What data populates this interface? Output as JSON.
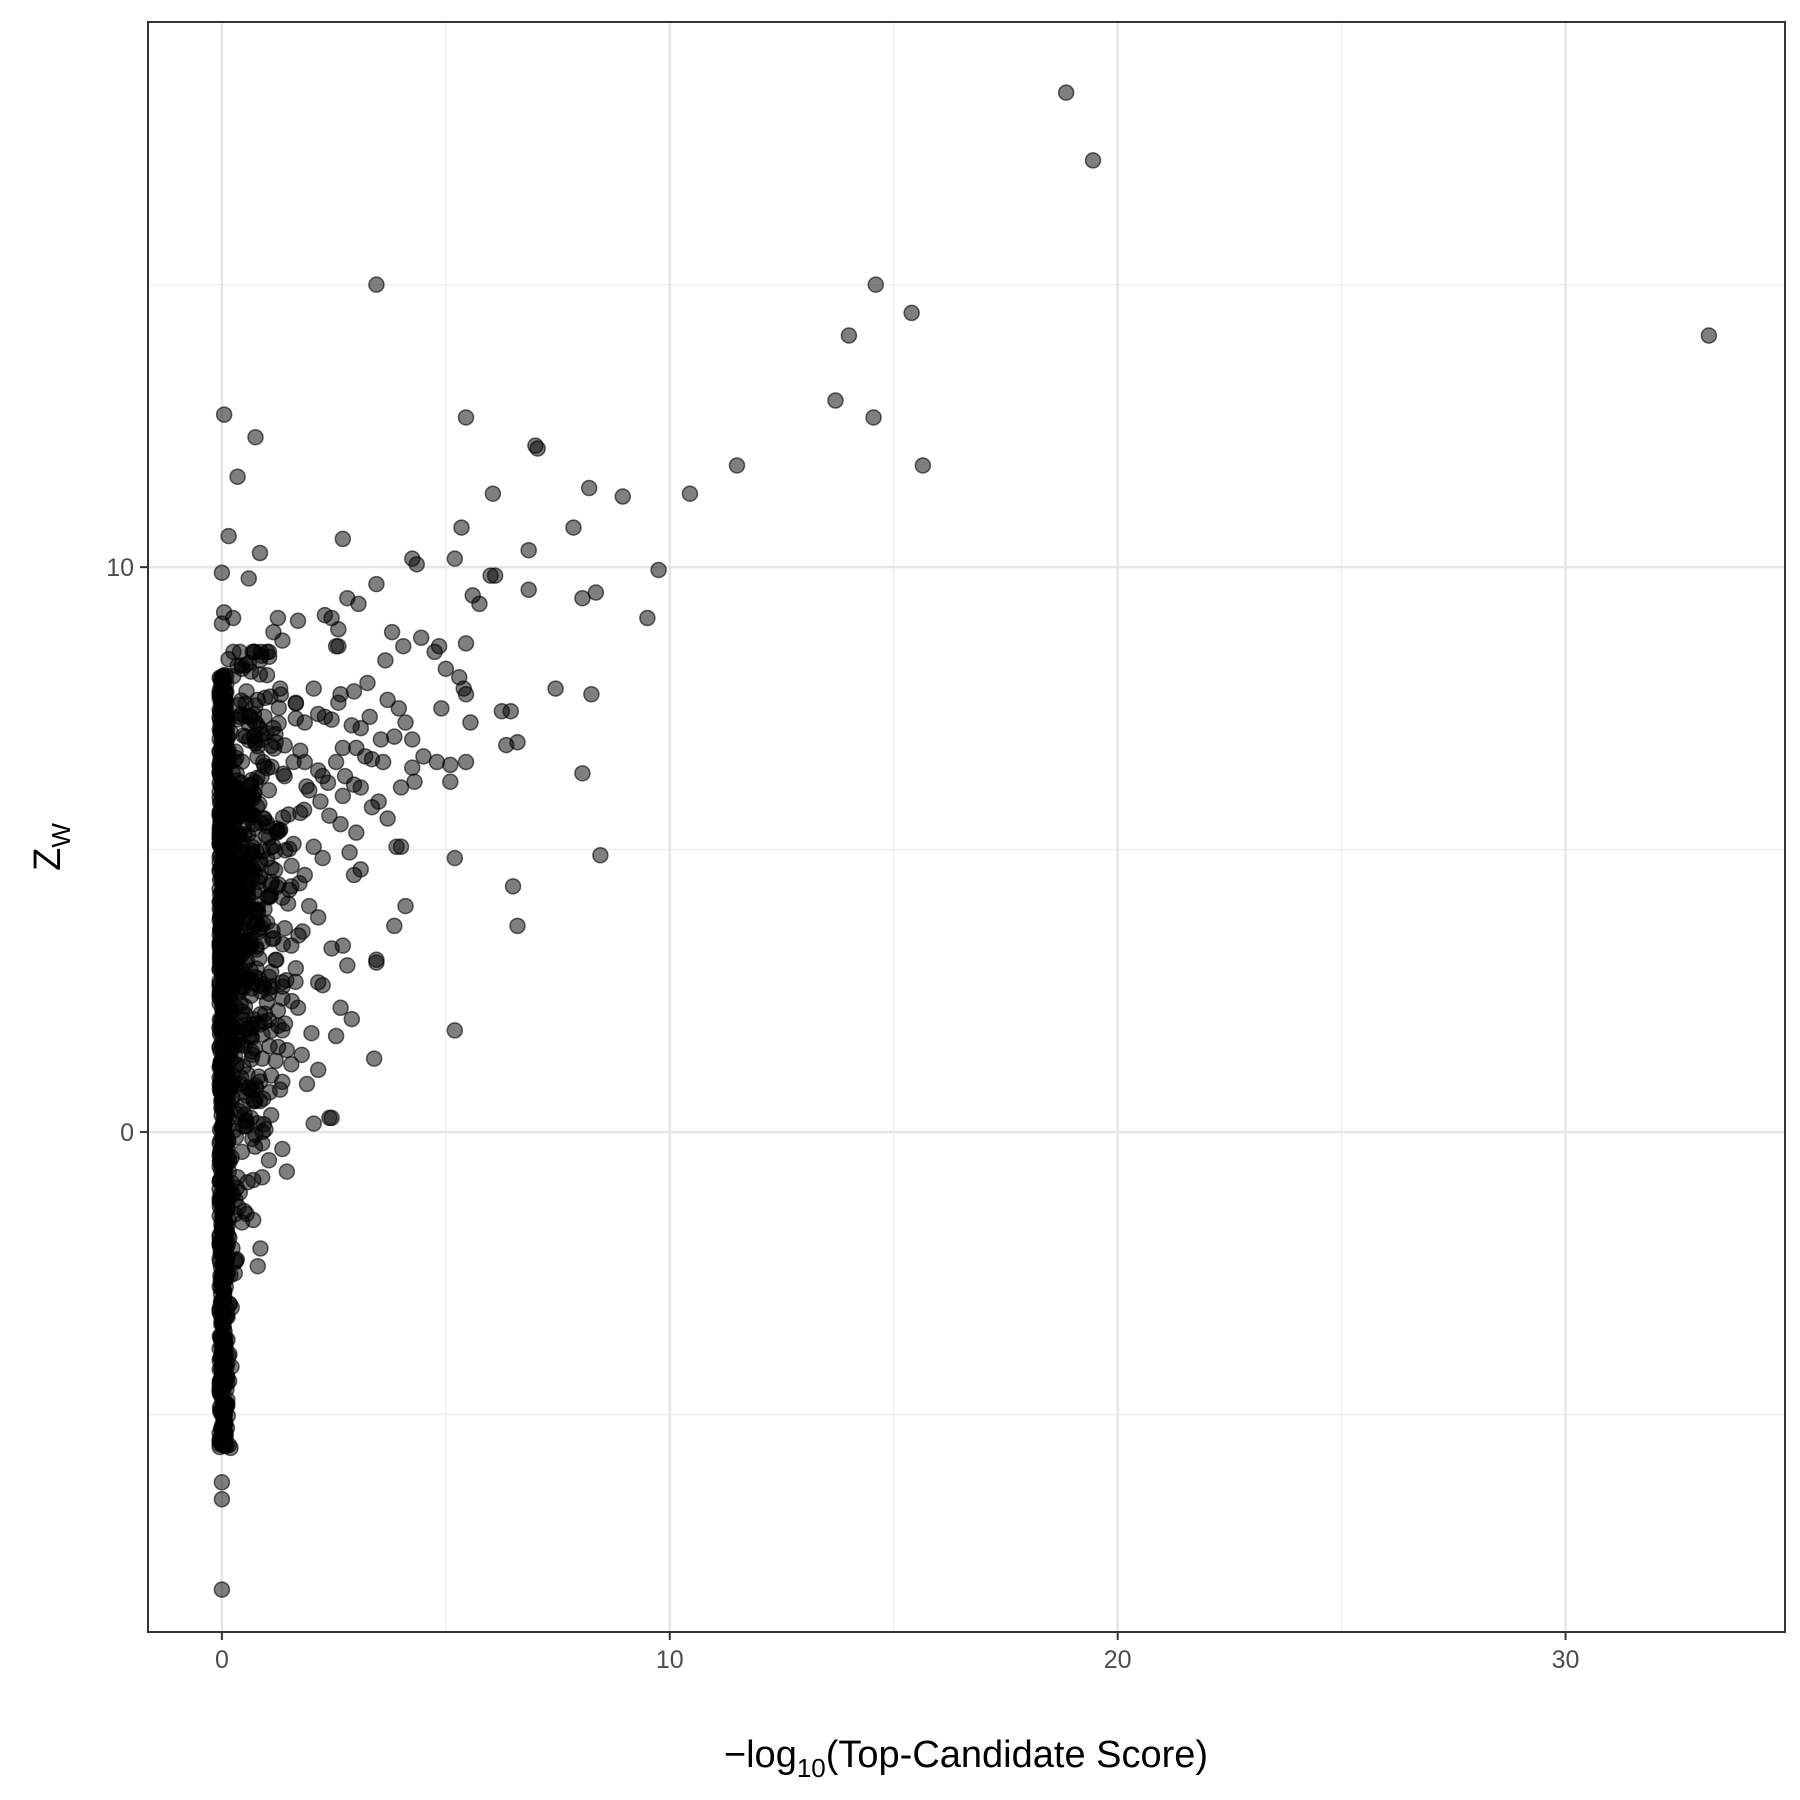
{
  "chart_data": {
    "type": "scatter",
    "xlabel": {
      "prefix": "−log",
      "subscript": "10",
      "suffix": "(Top-Candidate Score)"
    },
    "ylabel": {
      "main": "Z",
      "subscript": "W"
    },
    "xlim": [
      -1.65,
      34.9
    ],
    "ylim": [
      -8.85,
      19.65
    ],
    "x_ticks": [
      {
        "value": 0,
        "label": "0"
      },
      {
        "value": 10,
        "label": "10"
      },
      {
        "value": 20,
        "label": "20"
      },
      {
        "value": 30,
        "label": "30"
      }
    ],
    "y_ticks": [
      {
        "value": 0,
        "label": "0"
      },
      {
        "value": 10,
        "label": "10"
      }
    ],
    "x_minor": [
      5,
      15,
      25
    ],
    "y_minor": [
      -5,
      5,
      15
    ],
    "grid": true,
    "legend": "none",
    "point_color": "#000000",
    "point_opacity": 0.5,
    "points": [
      [
        18.85,
        18.4
      ],
      [
        19.45,
        17.2
      ],
      [
        14.6,
        15.0
      ],
      [
        15.4,
        14.5
      ],
      [
        14.0,
        14.1
      ],
      [
        33.2,
        14.1
      ],
      [
        13.7,
        12.95
      ],
      [
        14.55,
        12.65
      ],
      [
        15.65,
        11.8
      ],
      [
        3.45,
        15.0
      ],
      [
        0.05,
        12.7
      ],
      [
        0.75,
        12.3
      ],
      [
        0.35,
        11.6
      ],
      [
        5.45,
        12.65
      ],
      [
        7.0,
        12.15
      ],
      [
        7.05,
        12.1
      ],
      [
        11.5,
        11.8
      ],
      [
        10.45,
        11.3
      ],
      [
        8.95,
        11.25
      ],
      [
        8.2,
        11.4
      ],
      [
        6.05,
        11.3
      ],
      [
        7.85,
        10.7
      ],
      [
        6.85,
        10.3
      ],
      [
        5.35,
        10.7
      ],
      [
        0.15,
        10.55
      ],
      [
        0.85,
        10.25
      ],
      [
        2.7,
        10.5
      ],
      [
        4.25,
        10.15
      ],
      [
        4.35,
        10.05
      ],
      [
        5.2,
        10.15
      ],
      [
        6.0,
        9.85
      ],
      [
        6.1,
        9.85
      ],
      [
        9.75,
        9.95
      ],
      [
        0.0,
        9.9
      ],
      [
        0.6,
        9.8
      ],
      [
        3.45,
        9.7
      ],
      [
        6.85,
        9.6
      ],
      [
        8.35,
        9.55
      ],
      [
        8.05,
        9.45
      ],
      [
        5.6,
        9.5
      ],
      [
        5.75,
        9.35
      ],
      [
        2.8,
        9.45
      ],
      [
        3.05,
        9.35
      ],
      [
        9.5,
        9.1
      ],
      [
        0.0,
        9.0
      ],
      [
        0.05,
        9.2
      ],
      [
        0.25,
        9.1
      ],
      [
        1.25,
        9.1
      ],
      [
        1.15,
        8.85
      ],
      [
        1.35,
        8.7
      ],
      [
        1.7,
        9.05
      ],
      [
        2.3,
        9.15
      ],
      [
        2.45,
        9.1
      ],
      [
        2.6,
        8.9
      ],
      [
        2.55,
        8.6
      ],
      [
        2.6,
        8.6
      ],
      [
        3.8,
        8.85
      ],
      [
        4.05,
        8.6
      ],
      [
        4.45,
        8.75
      ],
      [
        4.75,
        8.5
      ],
      [
        4.85,
        8.6
      ],
      [
        5.45,
        8.65
      ],
      [
        5.0,
        8.2
      ],
      [
        5.3,
        8.05
      ],
      [
        5.4,
        7.85
      ],
      [
        5.45,
        7.75
      ],
      [
        3.65,
        8.35
      ],
      [
        3.25,
        7.95
      ],
      [
        7.45,
        7.85
      ],
      [
        8.25,
        7.75
      ],
      [
        3.7,
        7.65
      ],
      [
        3.95,
        7.5
      ],
      [
        4.1,
        7.25
      ],
      [
        4.9,
        7.5
      ],
      [
        5.55,
        7.25
      ],
      [
        6.25,
        7.45
      ],
      [
        6.45,
        7.45
      ],
      [
        3.1,
        7.15
      ],
      [
        3.3,
        7.35
      ],
      [
        3.55,
        6.95
      ],
      [
        3.85,
        7.0
      ],
      [
        4.25,
        6.95
      ],
      [
        4.5,
        6.65
      ],
      [
        4.25,
        6.45
      ],
      [
        4.8,
        6.55
      ],
      [
        5.1,
        6.5
      ],
      [
        5.45,
        6.55
      ],
      [
        6.35,
        6.85
      ],
      [
        6.6,
        6.9
      ],
      [
        3.2,
        6.65
      ],
      [
        3.35,
        6.6
      ],
      [
        3.6,
        6.55
      ],
      [
        4.0,
        6.1
      ],
      [
        4.3,
        6.2
      ],
      [
        5.1,
        6.2
      ],
      [
        8.05,
        6.35
      ],
      [
        3.1,
        6.1
      ],
      [
        3.35,
        5.75
      ],
      [
        3.5,
        5.85
      ],
      [
        3.7,
        5.55
      ],
      [
        3.9,
        5.05
      ],
      [
        4.0,
        5.05
      ],
      [
        5.2,
        4.85
      ],
      [
        8.45,
        4.9
      ],
      [
        6.5,
        4.35
      ],
      [
        6.6,
        3.65
      ],
      [
        4.1,
        4.0
      ],
      [
        3.85,
        3.65
      ],
      [
        3.45,
        3.05
      ],
      [
        3.45,
        3.0
      ],
      [
        5.2,
        1.8
      ],
      [
        3.4,
        1.3
      ],
      [
        0.0,
        -8.1
      ],
      [
        0.0,
        -6.5
      ],
      [
        0.0,
        -6.2
      ],
      [
        0.0,
        -5.3
      ],
      [
        0.0,
        -5.4
      ],
      [
        0.0,
        -4.9
      ],
      [
        0.0,
        -4.2
      ],
      [
        0.0,
        -3.8
      ],
      [
        0.02,
        -3.4
      ],
      [
        0.05,
        -2.9
      ],
      [
        0.3,
        -2.3
      ],
      [
        0.55,
        -1.45
      ],
      [
        0.45,
        -1.6
      ],
      [
        0.5,
        -1.4
      ],
      [
        0.3,
        -1.2
      ],
      [
        0.9,
        -0.8
      ],
      [
        0.9,
        -0.2
      ],
      [
        1.05,
        -0.5
      ],
      [
        1.45,
        -0.7
      ],
      [
        1.35,
        -0.3
      ],
      [
        0.75,
        0.55
      ],
      [
        1.1,
        0.3
      ],
      [
        1.3,
        0.75
      ],
      [
        1.55,
        1.2
      ],
      [
        1.9,
        0.85
      ],
      [
        2.05,
        0.15
      ],
      [
        2.15,
        1.1
      ],
      [
        2.4,
        0.25
      ],
      [
        2.45,
        0.25
      ],
      [
        2.0,
        1.75
      ],
      [
        2.55,
        1.7
      ],
      [
        1.7,
        2.2
      ],
      [
        2.15,
        2.65
      ],
      [
        2.25,
        2.6
      ],
      [
        2.8,
        2.95
      ],
      [
        2.65,
        2.2
      ],
      [
        2.9,
        2.0
      ],
      [
        2.45,
        3.25
      ],
      [
        2.7,
        3.3
      ],
      [
        2.95,
        4.55
      ],
      [
        2.85,
        4.95
      ],
      [
        3.1,
        4.65
      ],
      [
        3.0,
        5.3
      ],
      [
        2.65,
        5.45
      ],
      [
        2.4,
        5.6
      ],
      [
        2.7,
        5.95
      ],
      [
        2.95,
        6.15
      ],
      [
        2.75,
        6.3
      ],
      [
        2.55,
        6.55
      ],
      [
        2.7,
        6.8
      ],
      [
        3.0,
        6.8
      ],
      [
        2.9,
        7.2
      ],
      [
        2.6,
        7.6
      ],
      [
        2.45,
        7.3
      ],
      [
        2.65,
        7.75
      ],
      [
        2.95,
        7.8
      ],
      [
        2.05,
        7.85
      ],
      [
        2.3,
        7.35
      ],
      [
        2.15,
        7.4
      ],
      [
        1.85,
        7.25
      ],
      [
        1.65,
        7.6
      ],
      [
        1.3,
        7.85
      ],
      [
        1.15,
        7.15
      ],
      [
        1.2,
        6.9
      ],
      [
        0.95,
        7.35
      ],
      [
        0.75,
        7.55
      ],
      [
        0.8,
        7.65
      ],
      [
        0.4,
        7.35
      ],
      [
        0.55,
        7.8
      ],
      [
        0.65,
        8.15
      ],
      [
        0.85,
        8.1
      ],
      [
        0.85,
        8.35
      ],
      [
        0.45,
        8.2
      ],
      [
        0.35,
        8.25
      ],
      [
        0.6,
        8.3
      ],
      [
        1.75,
        6.75
      ],
      [
        1.85,
        6.55
      ],
      [
        2.15,
        6.4
      ],
      [
        2.25,
        6.3
      ],
      [
        1.6,
        6.55
      ],
      [
        1.4,
        6.3
      ],
      [
        1.05,
        6.05
      ],
      [
        1.95,
        6.05
      ],
      [
        2.2,
        5.85
      ],
      [
        1.75,
        5.65
      ],
      [
        1.3,
        5.35
      ],
      [
        1.6,
        5.1
      ],
      [
        2.05,
        5.05
      ],
      [
        2.25,
        4.85
      ],
      [
        1.85,
        4.55
      ],
      [
        1.55,
        4.35
      ],
      [
        1.35,
        4.15
      ],
      [
        1.95,
        4.0
      ],
      [
        2.15,
        3.8
      ],
      [
        1.8,
        3.55
      ],
      [
        1.55,
        3.3
      ],
      [
        1.2,
        3.05
      ],
      [
        1.65,
        2.9
      ],
      [
        1.35,
        2.65
      ],
      [
        1.05,
        2.45
      ],
      [
        1.25,
        2.15
      ],
      [
        0.95,
        1.95
      ],
      [
        1.35,
        1.8
      ],
      [
        1.45,
        1.45
      ],
      [
        1.1,
        1.0
      ],
      [
        0.85,
        0.55
      ],
      [
        0.65,
        0.25
      ],
      [
        0.75,
        -0.05
      ],
      [
        0.55,
        0.2
      ],
      [
        0.45,
        -0.35
      ],
      [
        0.35,
        -0.8
      ],
      [
        0.25,
        -1.1
      ]
    ],
    "dense_band": {
      "x_center": 0.03,
      "x_spread": 0.12,
      "y_min": -5.6,
      "y_max": 8.1,
      "count": 900
    },
    "dense_near": {
      "count": 600,
      "y_mean": 3.0,
      "y_spread": 3.6,
      "x_max": 1.4
    }
  }
}
